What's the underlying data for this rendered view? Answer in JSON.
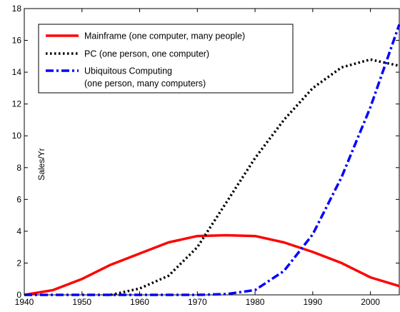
{
  "chart_data": {
    "type": "line",
    "title": "",
    "xlabel": "",
    "ylabel": "Sales/Yr",
    "xlim": [
      1940,
      2005
    ],
    "ylim": [
      0,
      18
    ],
    "x_ticks": [
      1940,
      1950,
      1960,
      1970,
      1980,
      1990,
      2000
    ],
    "y_ticks": [
      0,
      2,
      4,
      6,
      8,
      10,
      12,
      14,
      16,
      18
    ],
    "grid": false,
    "legend_position": "top-left",
    "series": [
      {
        "name": "Mainframe (one computer, many people)",
        "color": "#ff0000",
        "style": "solid",
        "x": [
          1940,
          1945,
          1950,
          1955,
          1960,
          1965,
          1970,
          1975,
          1980,
          1985,
          1990,
          1995,
          2000,
          2005
        ],
        "y": [
          0,
          0.3,
          1.0,
          1.9,
          2.6,
          3.3,
          3.7,
          3.75,
          3.7,
          3.3,
          2.7,
          2.0,
          1.1,
          0.55
        ]
      },
      {
        "name": "PC (one person, one computer)",
        "color": "#000000",
        "style": "dotted",
        "x": [
          1955,
          1960,
          1965,
          1970,
          1975,
          1980,
          1985,
          1990,
          1995,
          2000,
          2005
        ],
        "y": [
          0,
          0.4,
          1.2,
          3.0,
          5.8,
          8.6,
          11.0,
          13.0,
          14.3,
          14.8,
          14.4
        ]
      },
      {
        "name": "Ubiquitous Computing",
        "name_line2": "(one person, many computers)",
        "color": "#0000ff",
        "style": "dashdot",
        "x": [
          1940,
          1950,
          1960,
          1970,
          1975,
          1980,
          1985,
          1990,
          1995,
          2000,
          2005
        ],
        "y": [
          0,
          0,
          0,
          0,
          0.05,
          0.3,
          1.5,
          3.8,
          7.4,
          11.8,
          17.0
        ]
      }
    ]
  }
}
